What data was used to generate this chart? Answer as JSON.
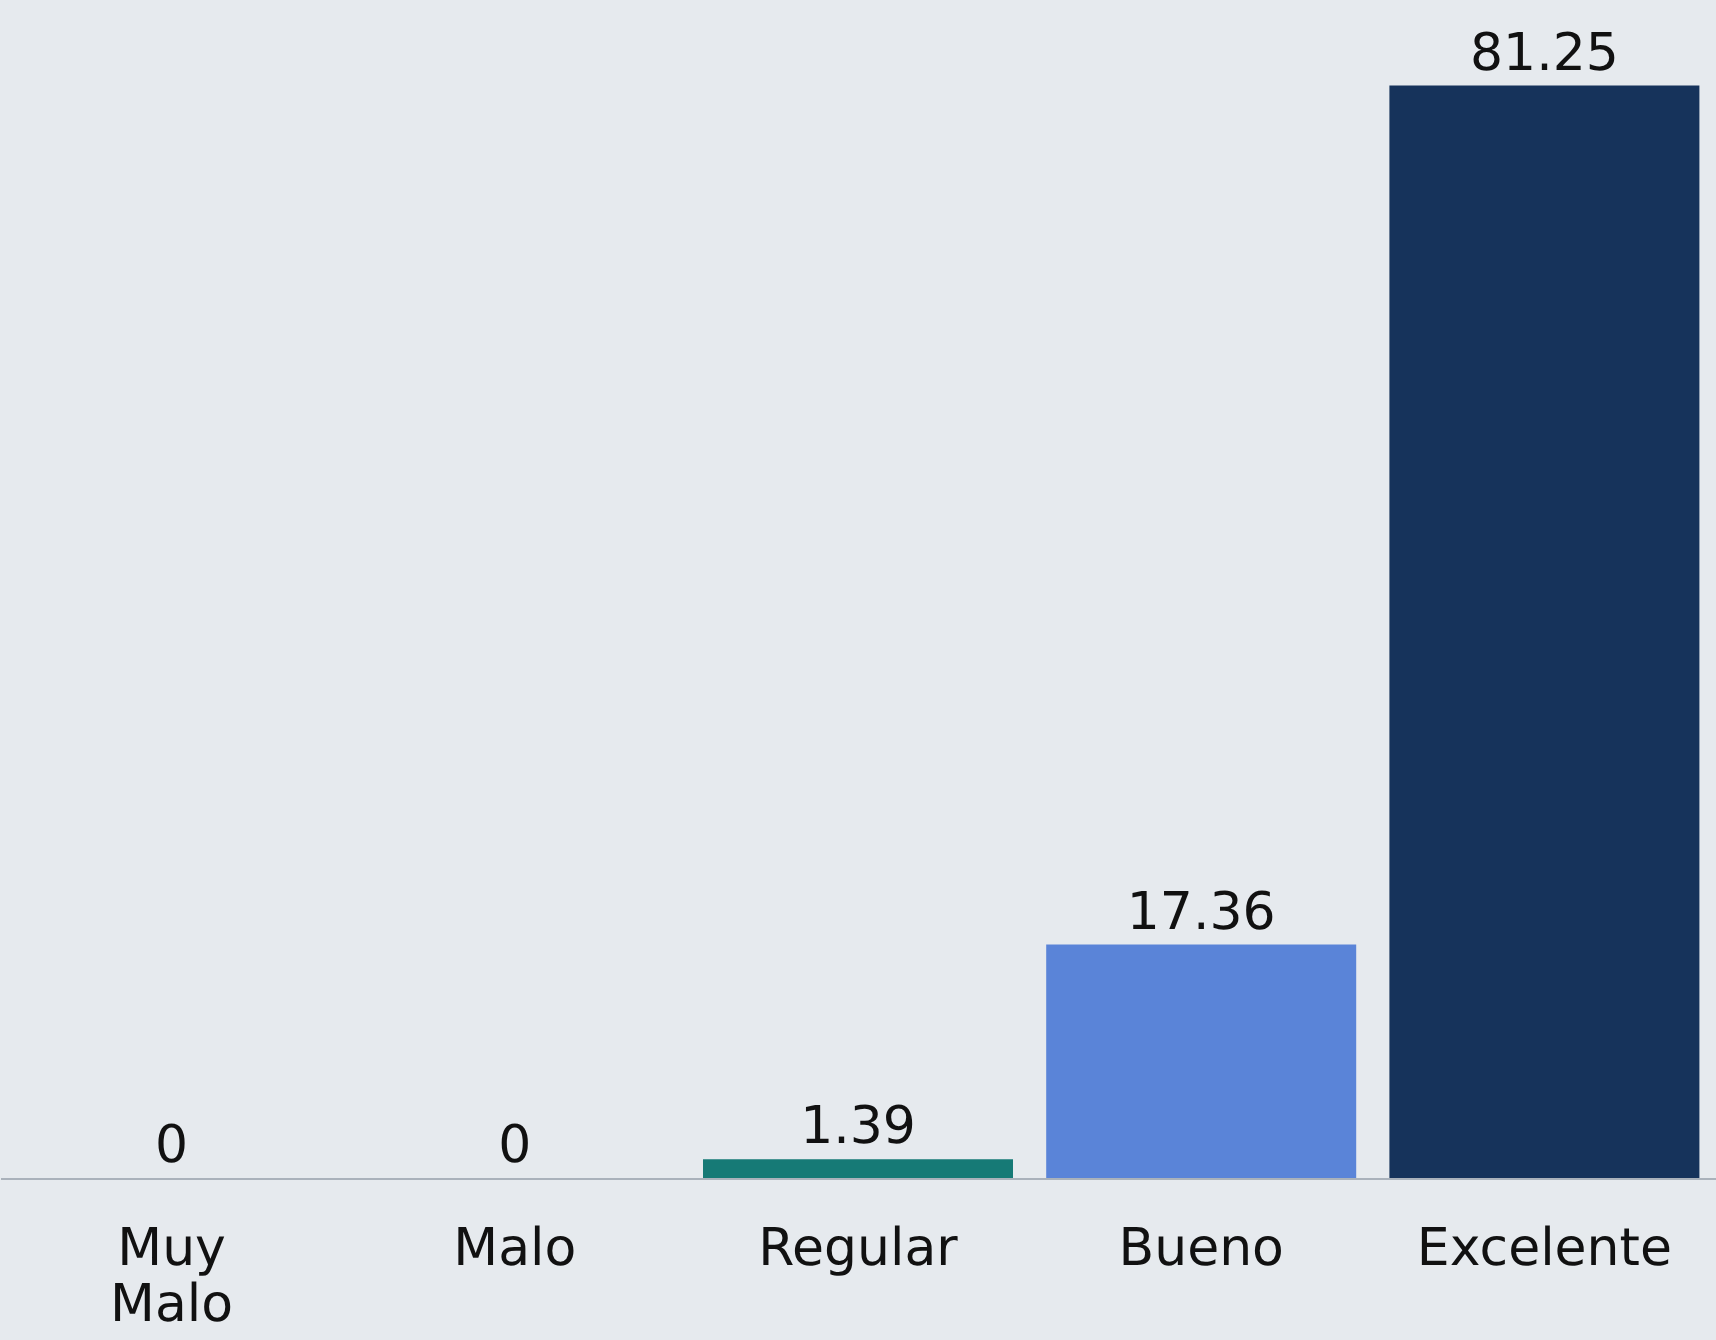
{
  "chart_data": {
    "type": "bar",
    "categories": [
      "Muy Malo",
      "Malo",
      "Regular",
      "Bueno",
      "Excelente"
    ],
    "values": [
      0,
      0,
      1.39,
      17.36,
      81.25
    ],
    "colors": [
      "#1b6f9c",
      "#28288a",
      "#167a76",
      "#5a84d8",
      "#16335b"
    ],
    "data_labels": true,
    "grid": false,
    "legend": false
  }
}
